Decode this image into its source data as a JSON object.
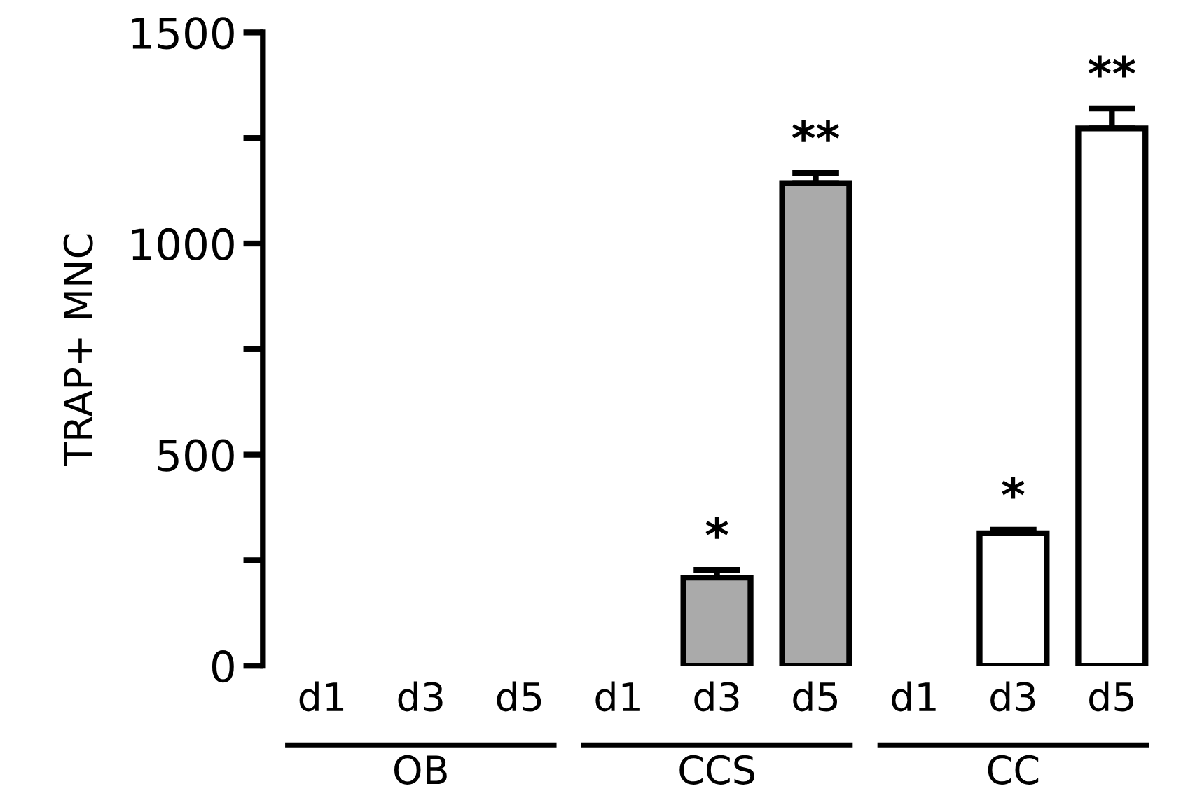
{
  "chart_data": {
    "type": "bar",
    "ylabel": "TRAP+ MNC",
    "categories": [
      "d1",
      "d3",
      "d5",
      "d1",
      "d3",
      "d5",
      "d1",
      "d3",
      "d5"
    ],
    "values": [
      0,
      0,
      0,
      0,
      209,
      1143,
      0,
      314,
      1273
    ],
    "errors": [
      null,
      null,
      null,
      null,
      18,
      24,
      null,
      8,
      47
    ],
    "colors": [
      "#aaaaaa",
      "#aaaaaa",
      "#aaaaaa",
      "#aaaaaa",
      "#aaaaaa",
      "#aaaaaa",
      "#ffffff",
      "#ffffff",
      "#ffffff"
    ],
    "value_labels": [
      null,
      null,
      null,
      null,
      "*",
      "**",
      null,
      "*",
      "**"
    ],
    "annotations": [
      "OB",
      "CCS",
      "CC"
    ],
    "ylim": [
      0,
      1500
    ],
    "yticks": [
      0,
      {
        "value": 250,
        "label": null
      },
      500,
      {
        "value": 750,
        "label": null
      },
      1000,
      {
        "value": 1250,
        "label": null
      },
      1500
    ],
    "grid": false,
    "legend": false
  }
}
